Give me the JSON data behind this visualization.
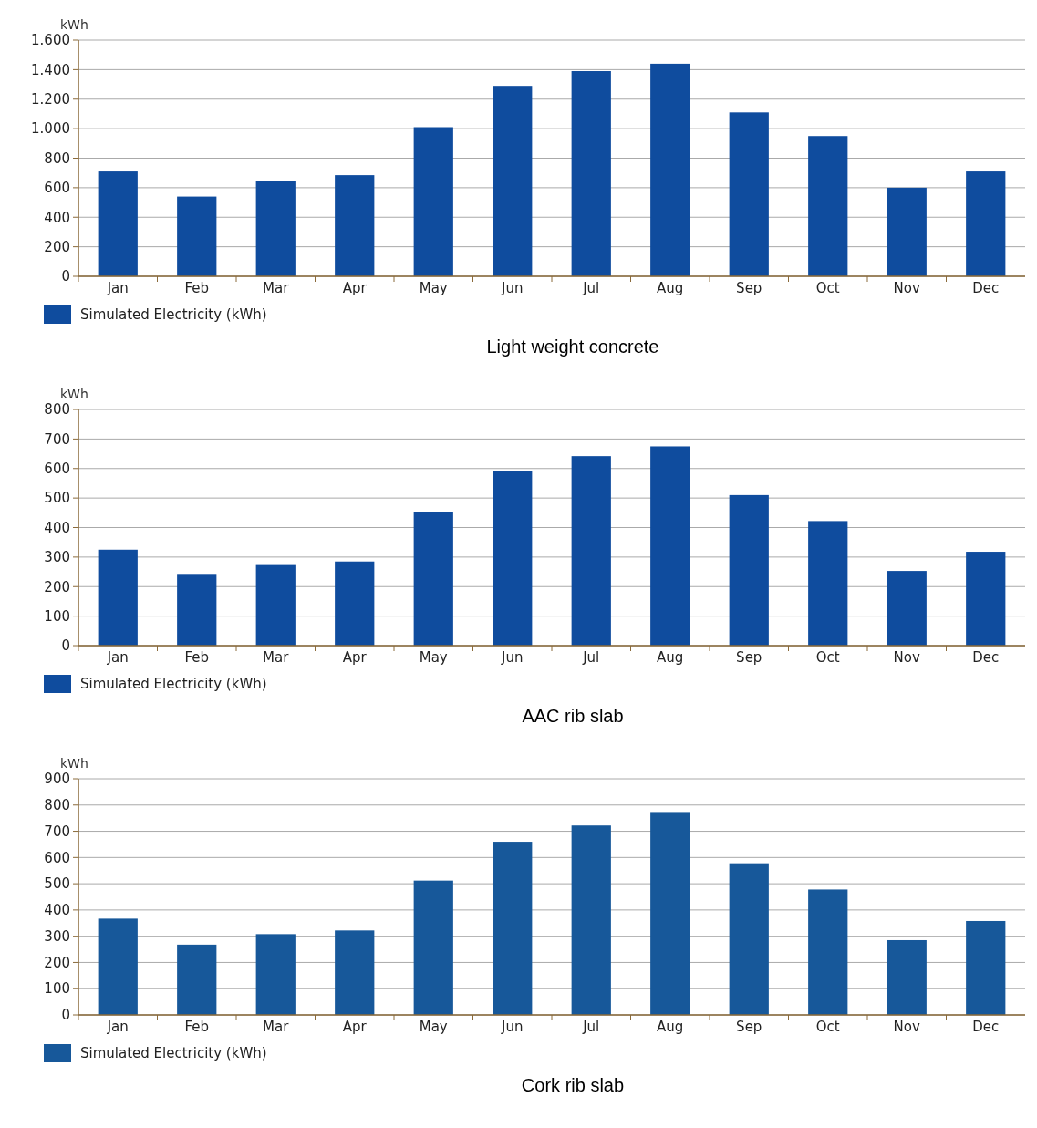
{
  "chart_data": [
    {
      "type": "bar",
      "title": "Light weight concrete",
      "ylabel": "kWh",
      "categories": [
        "Jan",
        "Feb",
        "Mar",
        "Apr",
        "May",
        "Jun",
        "Jul",
        "Aug",
        "Sep",
        "Oct",
        "Nov",
        "Dec"
      ],
      "series": [
        {
          "name": "Simulated Electricity (kWh)",
          "color": "#0f4c9e",
          "values": [
            710,
            540,
            645,
            685,
            1010,
            1290,
            1390,
            1440,
            1110,
            950,
            600,
            710
          ]
        }
      ],
      "ylim": [
        0,
        1600
      ],
      "yticks": [
        0,
        200,
        400,
        600,
        800,
        {
          "value": 1000,
          "label": "1.000"
        },
        {
          "value": 1200,
          "label": "1.200"
        },
        {
          "value": 1400,
          "label": "1.400"
        },
        {
          "value": 1600,
          "label": "1.600"
        }
      ],
      "grid": "y",
      "legend": "bottom left"
    },
    {
      "type": "bar",
      "title": "AAC rib slab",
      "ylabel": "kWh",
      "categories": [
        "Jan",
        "Feb",
        "Mar",
        "Apr",
        "May",
        "Jun",
        "Jul",
        "Aug",
        "Sep",
        "Oct",
        "Nov",
        "Dec"
      ],
      "series": [
        {
          "name": "Simulated Electricity (kWh)",
          "color": "#0f4c9e",
          "values": [
            325,
            240,
            273,
            285,
            453,
            590,
            642,
            675,
            510,
            422,
            253,
            318
          ]
        }
      ],
      "ylim": [
        0,
        800
      ],
      "yticks": [
        0,
        100,
        200,
        300,
        400,
        500,
        600,
        700,
        800
      ],
      "grid": "y",
      "legend": "bottom left"
    },
    {
      "type": "bar",
      "title": "Cork rib slab",
      "ylabel": "kWh",
      "categories": [
        "Jan",
        "Feb",
        "Mar",
        "Apr",
        "May",
        "Jun",
        "Jul",
        "Aug",
        "Sep",
        "Oct",
        "Nov",
        "Dec"
      ],
      "series": [
        {
          "name": "Simulated Electricity (kWh)",
          "color": "#17589a",
          "values": [
            367,
            268,
            308,
            322,
            512,
            660,
            722,
            770,
            578,
            478,
            285,
            358
          ]
        }
      ],
      "ylim": [
        0,
        900
      ],
      "yticks": [
        0,
        100,
        200,
        300,
        400,
        500,
        600,
        700,
        800,
        900
      ],
      "grid": "y",
      "legend": "bottom left"
    }
  ]
}
